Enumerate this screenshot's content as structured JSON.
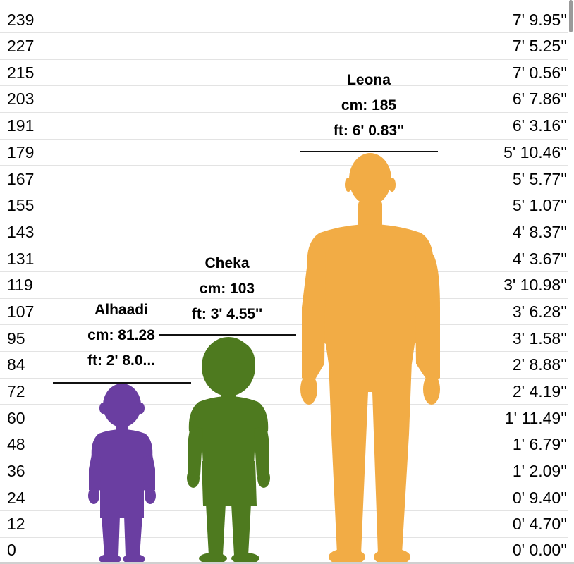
{
  "ruler": {
    "cm_ticks": [
      "239",
      "227",
      "215",
      "203",
      "191",
      "179",
      "167",
      "155",
      "143",
      "131",
      "119",
      "107",
      "95",
      "84",
      "72",
      "60",
      "48",
      "36",
      "24",
      "12",
      "0"
    ],
    "ft_ticks": [
      "7' 9.95''",
      "7' 5.25''",
      "7' 0.56''",
      "6' 7.86''",
      "6' 3.16''",
      "5' 10.46''",
      "5' 5.77''",
      "5' 1.07''",
      "4' 8.37''",
      "4' 3.67''",
      "3' 10.98''",
      "3' 6.28''",
      "3' 1.58''",
      "2' 8.88''",
      "2' 4.19''",
      "1' 11.49''",
      "1' 6.79''",
      "1' 2.09''",
      "0' 9.40''",
      "0' 4.70''",
      "0' 0.00''"
    ]
  },
  "people": [
    {
      "name": "Alhaadi",
      "cm_text": "cm: 81.28",
      "ft_text": "ft: 2' 8.0...",
      "color": "#6a3ea1",
      "height_cm": 81.28
    },
    {
      "name": "Cheka",
      "cm_text": "cm: 103",
      "ft_text": "ft: 3' 4.55''",
      "color": "#4e7a1f",
      "height_cm": 103
    },
    {
      "name": "Leona",
      "cm_text": "cm: 185",
      "ft_text": "ft: 6' 0.83''",
      "color": "#f2ac45",
      "height_cm": 185
    }
  ]
}
